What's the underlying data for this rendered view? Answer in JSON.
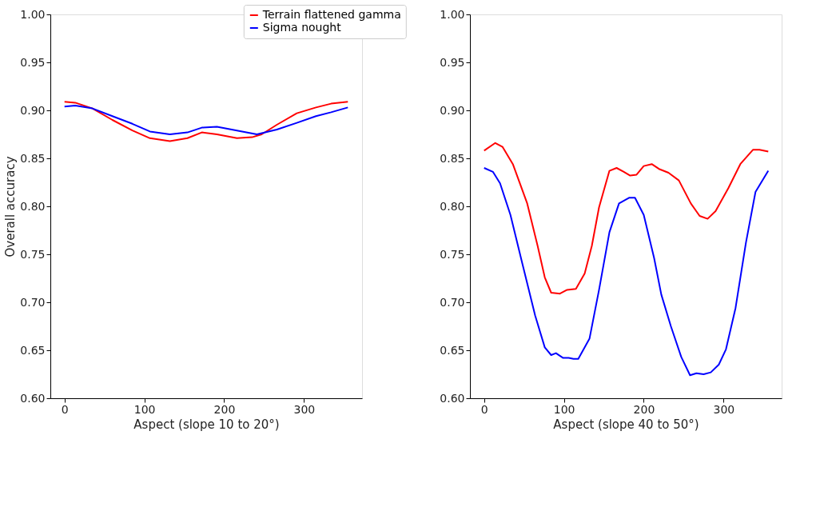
{
  "chart_data": [
    {
      "type": "line",
      "xlabel": "Aspect (slope 10 to 20°)",
      "ylabel": "Overall accuracy",
      "xlim": [
        -17.75,
        372.75
      ],
      "xticks": [
        0,
        100,
        200,
        300
      ],
      "ylim": [
        0.6,
        1.0
      ],
      "yticks": [
        {
          "value": 0.6,
          "label": "0.60"
        },
        0.65,
        {
          "value": 0.7,
          "label": "0.70"
        },
        0.75,
        {
          "value": 0.8,
          "label": "0.80"
        },
        0.85,
        {
          "value": 0.9,
          "label": "0.90"
        },
        0.95,
        {
          "value": 1.0,
          "label": "1.00"
        }
      ],
      "grid": false,
      "legend": "top",
      "line_style": "solid",
      "series": [
        {
          "name": "Terrain flattened gamma",
          "color": "#ff0000",
          "x": [
            0,
            13.5,
            35,
            60,
            85,
            107,
            132,
            154,
            172,
            191,
            216,
            235,
            247,
            266,
            291,
            315,
            334,
            355
          ],
          "values": [
            0.909,
            0.908,
            0.902,
            0.89,
            0.879,
            0.871,
            0.868,
            0.871,
            0.877,
            0.875,
            0.871,
            0.872,
            0.875,
            0.885,
            0.897,
            0.903,
            0.907,
            0.909
          ]
        },
        {
          "name": "Sigma nought",
          "color": "#0000ff",
          "x": [
            0,
            13.5,
            35,
            60,
            85,
            107,
            132,
            154,
            172,
            191,
            216,
            241,
            266,
            291,
            315,
            334,
            355
          ],
          "values": [
            0.904,
            0.905,
            0.902,
            0.894,
            0.886,
            0.878,
            0.875,
            0.877,
            0.882,
            0.883,
            0.879,
            0.875,
            0.88,
            0.887,
            0.894,
            0.898,
            0.903
          ]
        }
      ]
    },
    {
      "type": "line",
      "xlabel": "Aspect (slope 40 to 50°)",
      "xlim": [
        -17.75,
        372.75
      ],
      "xticks": [
        0,
        100,
        200,
        300
      ],
      "ylim": [
        0.6,
        1.0
      ],
      "yticks": [
        {
          "value": 0.6,
          "label": "0.60"
        },
        0.65,
        {
          "value": 0.7,
          "label": "0.70"
        },
        0.75,
        {
          "value": 0.8,
          "label": "0.80"
        },
        0.85,
        {
          "value": 0.9,
          "label": "0.90"
        },
        0.95,
        {
          "value": 1.0,
          "label": "1.00"
        }
      ],
      "grid": false,
      "line_style": "solid",
      "series": [
        {
          "color": "#ff0000",
          "x": [
            0,
            14,
            23,
            36,
            54,
            67,
            76,
            84,
            95,
            104,
            115,
            126,
            135,
            144,
            157,
            166,
            175,
            183,
            191,
            200,
            210,
            219,
            231,
            244,
            259,
            270,
            280,
            290,
            306,
            321,
            337,
            345,
            356
          ],
          "values": [
            0.858,
            0.866,
            0.862,
            0.844,
            0.803,
            0.759,
            0.726,
            0.71,
            0.709,
            0.713,
            0.714,
            0.73,
            0.759,
            0.799,
            0.837,
            0.84,
            0.836,
            0.832,
            0.833,
            0.842,
            0.844,
            0.839,
            0.835,
            0.827,
            0.803,
            0.79,
            0.787,
            0.795,
            0.819,
            0.844,
            0.859,
            0.859,
            0.857
          ]
        },
        {
          "color": "#0000ff",
          "x": [
            0,
            11,
            20,
            33,
            48,
            64,
            76,
            84,
            90,
            99,
            106,
            112,
            118,
            132,
            144,
            157,
            169,
            182,
            189,
            200,
            213,
            222,
            234,
            247,
            258,
            266,
            275,
            284,
            294,
            303,
            315,
            328,
            340,
            356
          ],
          "values": [
            0.84,
            0.836,
            0.824,
            0.791,
            0.74,
            0.686,
            0.653,
            0.645,
            0.647,
            0.642,
            0.642,
            0.641,
            0.641,
            0.662,
            0.713,
            0.773,
            0.803,
            0.809,
            0.809,
            0.791,
            0.746,
            0.708,
            0.675,
            0.643,
            0.624,
            0.626,
            0.625,
            0.627,
            0.635,
            0.651,
            0.694,
            0.762,
            0.815,
            0.837
          ]
        }
      ]
    }
  ]
}
